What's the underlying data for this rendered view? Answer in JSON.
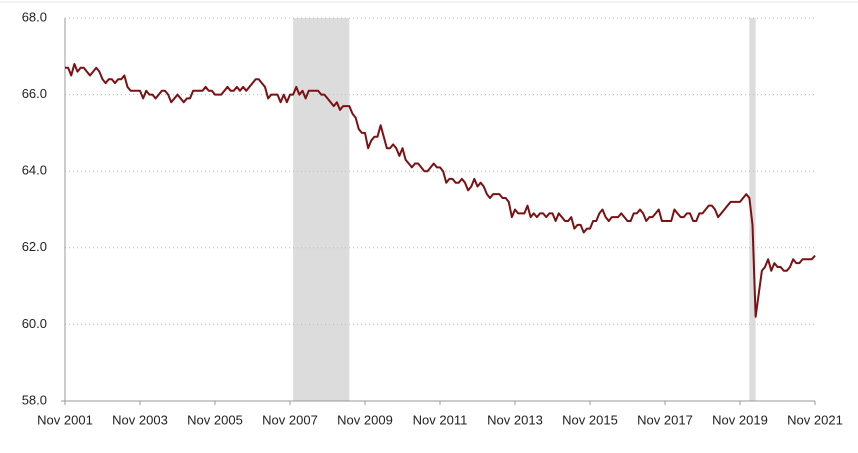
{
  "chart_data": {
    "type": "line",
    "x": [
      "Nov 2001",
      "Dec 2001",
      "Jan 2002",
      "Feb 2002",
      "Mar 2002",
      "Apr 2002",
      "May 2002",
      "Jun 2002",
      "Jul 2002",
      "Aug 2002",
      "Sep 2002",
      "Oct 2002",
      "Nov 2002",
      "Dec 2002",
      "Jan 2003",
      "Feb 2003",
      "Mar 2003",
      "Apr 2003",
      "May 2003",
      "Jun 2003",
      "Jul 2003",
      "Aug 2003",
      "Sep 2003",
      "Oct 2003",
      "Nov 2003",
      "Dec 2003",
      "Jan 2004",
      "Feb 2004",
      "Mar 2004",
      "Apr 2004",
      "May 2004",
      "Jun 2004",
      "Jul 2004",
      "Aug 2004",
      "Sep 2004",
      "Oct 2004",
      "Nov 2004",
      "Dec 2004",
      "Jan 2005",
      "Feb 2005",
      "Mar 2005",
      "Apr 2005",
      "May 2005",
      "Jun 2005",
      "Jul 2005",
      "Aug 2005",
      "Sep 2005",
      "Oct 2005",
      "Nov 2005",
      "Dec 2005",
      "Jan 2006",
      "Feb 2006",
      "Mar 2006",
      "Apr 2006",
      "May 2006",
      "Jun 2006",
      "Jul 2006",
      "Aug 2006",
      "Sep 2006",
      "Oct 2006",
      "Nov 2006",
      "Dec 2006",
      "Jan 2007",
      "Feb 2007",
      "Mar 2007",
      "Apr 2007",
      "May 2007",
      "Jun 2007",
      "Jul 2007",
      "Aug 2007",
      "Sep 2007",
      "Oct 2007",
      "Nov 2007",
      "Dec 2007",
      "Jan 2008",
      "Feb 2008",
      "Mar 2008",
      "Apr 2008",
      "May 2008",
      "Jun 2008",
      "Jul 2008",
      "Aug 2008",
      "Sep 2008",
      "Oct 2008",
      "Nov 2008",
      "Dec 2008",
      "Jan 2009",
      "Feb 2009",
      "Mar 2009",
      "Apr 2009",
      "May 2009",
      "Jun 2009",
      "Jul 2009",
      "Aug 2009",
      "Sep 2009",
      "Oct 2009",
      "Nov 2009",
      "Dec 2009",
      "Jan 2010",
      "Feb 2010",
      "Mar 2010",
      "Apr 2010",
      "May 2010",
      "Jun 2010",
      "Jul 2010",
      "Aug 2010",
      "Sep 2010",
      "Oct 2010",
      "Nov 2010",
      "Dec 2010",
      "Jan 2011",
      "Feb 2011",
      "Mar 2011",
      "Apr 2011",
      "May 2011",
      "Jun 2011",
      "Jul 2011",
      "Aug 2011",
      "Sep 2011",
      "Oct 2011",
      "Nov 2011",
      "Dec 2011",
      "Jan 2012",
      "Feb 2012",
      "Mar 2012",
      "Apr 2012",
      "May 2012",
      "Jun 2012",
      "Jul 2012",
      "Aug 2012",
      "Sep 2012",
      "Oct 2012",
      "Nov 2012",
      "Dec 2012",
      "Jan 2013",
      "Feb 2013",
      "Mar 2013",
      "Apr 2013",
      "May 2013",
      "Jun 2013",
      "Jul 2013",
      "Aug 2013",
      "Sep 2013",
      "Oct 2013",
      "Nov 2013",
      "Dec 2013",
      "Jan 2014",
      "Feb 2014",
      "Mar 2014",
      "Apr 2014",
      "May 2014",
      "Jun 2014",
      "Jul 2014",
      "Aug 2014",
      "Sep 2014",
      "Oct 2014",
      "Nov 2014",
      "Dec 2014",
      "Jan 2015",
      "Feb 2015",
      "Mar 2015",
      "Apr 2015",
      "May 2015",
      "Jun 2015",
      "Jul 2015",
      "Aug 2015",
      "Sep 2015",
      "Oct 2015",
      "Nov 2015",
      "Dec 2015",
      "Jan 2016",
      "Feb 2016",
      "Mar 2016",
      "Apr 2016",
      "May 2016",
      "Jun 2016",
      "Jul 2016",
      "Aug 2016",
      "Sep 2016",
      "Oct 2016",
      "Nov 2016",
      "Dec 2016",
      "Jan 2017",
      "Feb 2017",
      "Mar 2017",
      "Apr 2017",
      "May 2017",
      "Jun 2017",
      "Jul 2017",
      "Aug 2017",
      "Sep 2017",
      "Oct 2017",
      "Nov 2017",
      "Dec 2017",
      "Jan 2018",
      "Feb 2018",
      "Mar 2018",
      "Apr 2018",
      "May 2018",
      "Jun 2018",
      "Jul 2018",
      "Aug 2018",
      "Sep 2018",
      "Oct 2018",
      "Nov 2018",
      "Dec 2018",
      "Jan 2019",
      "Feb 2019",
      "Mar 2019",
      "Apr 2019",
      "May 2019",
      "Jun 2019",
      "Jul 2019",
      "Aug 2019",
      "Sep 2019",
      "Oct 2019",
      "Nov 2019",
      "Dec 2019",
      "Jan 2020",
      "Feb 2020",
      "Mar 2020",
      "Apr 2020",
      "May 2020",
      "Jun 2020",
      "Jul 2020",
      "Aug 2020",
      "Sep 2020",
      "Oct 2020",
      "Nov 2020",
      "Dec 2020",
      "Jan 2021",
      "Feb 2021",
      "Mar 2021",
      "Apr 2021",
      "May 2021",
      "Jun 2021",
      "Jul 2021",
      "Aug 2021",
      "Sep 2021",
      "Oct 2021",
      "Nov 2021"
    ],
    "series": [
      {
        "color": "#7b1113",
        "values": [
          66.7,
          66.7,
          66.5,
          66.8,
          66.6,
          66.7,
          66.7,
          66.6,
          66.5,
          66.6,
          66.7,
          66.6,
          66.4,
          66.3,
          66.4,
          66.4,
          66.3,
          66.4,
          66.4,
          66.5,
          66.2,
          66.1,
          66.1,
          66.1,
          66.1,
          65.9,
          66.1,
          66.0,
          66.0,
          65.9,
          66.0,
          66.1,
          66.1,
          66.0,
          65.8,
          65.9,
          66.0,
          65.9,
          65.8,
          65.9,
          65.9,
          66.1,
          66.1,
          66.1,
          66.1,
          66.2,
          66.1,
          66.1,
          66.0,
          66.0,
          66.0,
          66.1,
          66.2,
          66.1,
          66.1,
          66.2,
          66.1,
          66.2,
          66.1,
          66.2,
          66.3,
          66.4,
          66.4,
          66.3,
          66.2,
          65.9,
          66.0,
          66.0,
          66.0,
          65.8,
          66.0,
          65.8,
          66.0,
          66.0,
          66.2,
          66.0,
          66.1,
          65.9,
          66.1,
          66.1,
          66.1,
          66.1,
          66.0,
          66.0,
          65.9,
          65.8,
          65.7,
          65.8,
          65.6,
          65.7,
          65.7,
          65.7,
          65.5,
          65.4,
          65.1,
          65.0,
          65.0,
          64.6,
          64.8,
          64.9,
          64.9,
          65.2,
          64.9,
          64.6,
          64.6,
          64.7,
          64.6,
          64.4,
          64.6,
          64.3,
          64.2,
          64.1,
          64.2,
          64.2,
          64.1,
          64.0,
          64.0,
          64.1,
          64.2,
          64.1,
          64.1,
          64.0,
          63.7,
          63.8,
          63.8,
          63.7,
          63.7,
          63.8,
          63.7,
          63.5,
          63.6,
          63.8,
          63.6,
          63.7,
          63.6,
          63.4,
          63.3,
          63.4,
          63.4,
          63.4,
          63.3,
          63.3,
          63.2,
          62.8,
          63.0,
          62.9,
          62.9,
          62.9,
          63.1,
          62.8,
          62.9,
          62.8,
          62.9,
          62.9,
          62.8,
          62.9,
          62.9,
          62.7,
          62.9,
          62.8,
          62.7,
          62.7,
          62.8,
          62.5,
          62.6,
          62.6,
          62.4,
          62.5,
          62.5,
          62.7,
          62.7,
          62.9,
          63.0,
          62.8,
          62.7,
          62.8,
          62.8,
          62.8,
          62.9,
          62.8,
          62.7,
          62.7,
          62.9,
          62.9,
          63.0,
          62.9,
          62.7,
          62.8,
          62.8,
          62.9,
          63.0,
          62.7,
          62.7,
          62.7,
          62.7,
          63.0,
          62.9,
          62.8,
          62.8,
          62.9,
          62.9,
          62.7,
          62.7,
          62.9,
          62.9,
          63.0,
          63.1,
          63.1,
          63.0,
          62.8,
          62.9,
          63.0,
          63.1,
          63.2,
          63.2,
          63.2,
          63.2,
          63.3,
          63.4,
          63.3,
          62.6,
          60.2,
          60.8,
          61.4,
          61.5,
          61.7,
          61.4,
          61.6,
          61.5,
          61.5,
          61.4,
          61.4,
          61.5,
          61.7,
          61.6,
          61.6,
          61.7,
          61.7,
          61.7,
          61.7,
          61.8
        ]
      }
    ],
    "xticks": [
      "Nov 2001",
      "Nov 2003",
      "Nov 2005",
      "Nov 2007",
      "Nov 2009",
      "Nov 2011",
      "Nov 2013",
      "Nov 2015",
      "Nov 2017",
      "Nov 2019",
      "Nov 2021"
    ],
    "ylim": [
      58,
      68
    ],
    "yticks": [
      {
        "value": 58,
        "label": "58.0"
      },
      {
        "value": 60,
        "label": "60.0"
      },
      {
        "value": 62,
        "label": "62.0"
      },
      {
        "value": 64,
        "label": "64.0"
      },
      {
        "value": 66,
        "label": "66.0"
      },
      {
        "value": 68,
        "label": "68.0"
      }
    ],
    "grid": true,
    "shaded": [
      {
        "start": "Dec 2007",
        "end": "Jun 2009"
      },
      {
        "start": "Feb 2020",
        "end": "Apr 2020"
      }
    ],
    "shade_color": "#dcdcdc"
  }
}
